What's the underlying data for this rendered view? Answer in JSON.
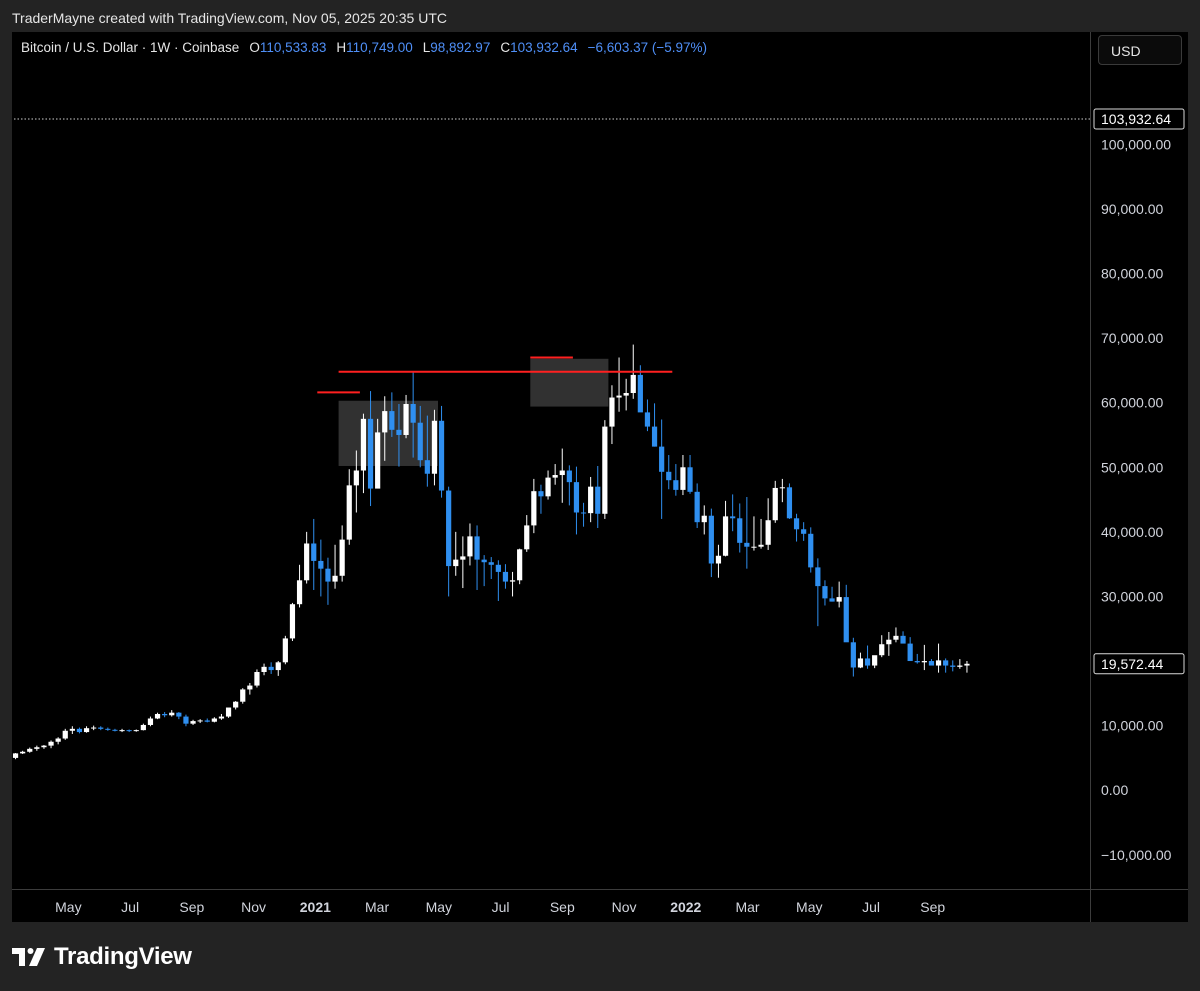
{
  "caption": "TraderMayne created with TradingView.com, Nov 05, 2025 20:35 UTC",
  "legend": {
    "symbol": "Bitcoin / U.S. Dollar · 1W · Coinbase",
    "o_label": "O",
    "o_value": "110,533.83",
    "h_label": "H",
    "h_value": "110,749.00",
    "l_label": "L",
    "l_value": "98,892.97",
    "c_label": "C",
    "c_value": "103,932.64",
    "change": "−6,603.37 (−5.97%)"
  },
  "currency_button": "USD",
  "brand": "TradingView",
  "colors": {
    "background": "#000000",
    "up": "#ffffff",
    "down": "#2f8ff0",
    "level_line": "#ff2020",
    "zone": "#3a3a3a",
    "axis_text": "#d1d4dc"
  },
  "chart_data": {
    "type": "candlestick",
    "timeframe": "1W",
    "y_axis_ticks": [
      100000,
      90000,
      80000,
      70000,
      60000,
      50000,
      40000,
      30000,
      20000,
      10000,
      0,
      -10000
    ],
    "y_tick_labels": [
      "100,000.00",
      "90,000.00",
      "80,000.00",
      "70,000.00",
      "60,000.00",
      "50,000.00",
      "40,000.00",
      "30,000.00",
      "20,000.00",
      "10,000.00",
      "0.00",
      "−10,000.00"
    ],
    "ylim": [
      -15300,
      117400
    ],
    "x_tick_labels": [
      "May",
      "Jul",
      "Sep",
      "Nov",
      "2021",
      "Mar",
      "May",
      "Jul",
      "Sep",
      "Nov",
      "2022",
      "Mar",
      "May",
      "Jul",
      "Sep"
    ],
    "bold_x_ticks": [
      "2021",
      "2022"
    ],
    "price_tags": [
      {
        "value": 103932.64,
        "label": "103,932.64",
        "style": "dotted-line"
      },
      {
        "value": 19572.44,
        "label": "19,572.44",
        "style": "last-bar"
      }
    ],
    "horizontal_levels": [
      {
        "value": 61600,
        "from_bar": 43,
        "to_bar": 49
      },
      {
        "value": 64800,
        "from_bar": 46,
        "to_bar": 93
      },
      {
        "value": 67000,
        "from_bar": 73,
        "to_bar": 79
      }
    ],
    "zones": [
      {
        "from_bar": 46,
        "to_bar": 60,
        "low": 50200,
        "high": 60300
      },
      {
        "from_bar": 73,
        "to_bar": 84,
        "low": 59400,
        "high": 66800
      }
    ],
    "candles": [
      [
        5000,
        5750,
        4800,
        5700
      ],
      [
        5700,
        6100,
        5600,
        5950
      ],
      [
        5950,
        6600,
        5800,
        6400
      ],
      [
        6400,
        6900,
        6100,
        6650
      ],
      [
        6650,
        7000,
        6400,
        6900
      ],
      [
        6900,
        7700,
        6500,
        7500
      ],
      [
        7500,
        8200,
        7100,
        8000
      ],
      [
        8000,
        9500,
        7800,
        9200
      ],
      [
        9200,
        9900,
        8700,
        9500
      ],
      [
        9500,
        9700,
        8800,
        9000
      ],
      [
        9000,
        9900,
        8900,
        9600
      ],
      [
        9600,
        10000,
        9300,
        9700
      ],
      [
        9700,
        9900,
        9300,
        9500
      ],
      [
        9500,
        9700,
        9200,
        9350
      ],
      [
        9350,
        9500,
        9100,
        9250
      ],
      [
        9250,
        9500,
        9000,
        9300
      ],
      [
        9300,
        9400,
        9000,
        9150
      ],
      [
        9150,
        9400,
        9050,
        9300
      ],
      [
        9300,
        10300,
        9250,
        10100
      ],
      [
        10100,
        11400,
        9900,
        11100
      ],
      [
        11100,
        12000,
        11000,
        11800
      ],
      [
        11800,
        12100,
        11300,
        11600
      ],
      [
        11600,
        12400,
        11400,
        12000
      ],
      [
        12000,
        12100,
        11000,
        11400
      ],
      [
        11400,
        11700,
        9900,
        10300
      ],
      [
        10300,
        10900,
        10100,
        10700
      ],
      [
        10700,
        11000,
        10400,
        10800
      ],
      [
        10800,
        11100,
        10500,
        10600
      ],
      [
        10600,
        11300,
        10500,
        11100
      ],
      [
        11100,
        11800,
        10900,
        11400
      ],
      [
        11400,
        12300,
        11200,
        12800
      ],
      [
        12800,
        13800,
        12500,
        13700
      ],
      [
        13700,
        15800,
        13400,
        15600
      ],
      [
        15600,
        16600,
        14800,
        16200
      ],
      [
        16200,
        18700,
        15900,
        18300
      ],
      [
        18300,
        19600,
        17800,
        19100
      ],
      [
        19100,
        19800,
        18000,
        18600
      ],
      [
        18600,
        20000,
        17700,
        19800
      ],
      [
        19800,
        23900,
        19500,
        23500
      ],
      [
        23500,
        29000,
        23100,
        28800
      ],
      [
        28800,
        34900,
        28300,
        32500
      ],
      [
        32500,
        40000,
        32000,
        38200
      ],
      [
        38200,
        42000,
        31000,
        35500
      ],
      [
        35500,
        38800,
        30000,
        34300
      ],
      [
        34300,
        36000,
        28700,
        32300
      ],
      [
        32300,
        38000,
        31200,
        33200
      ],
      [
        33200,
        41000,
        32300,
        38800
      ],
      [
        38800,
        49700,
        38000,
        47200
      ],
      [
        47200,
        52600,
        43000,
        49500
      ],
      [
        49500,
        58300,
        46000,
        57500
      ],
      [
        57500,
        61800,
        44000,
        46700
      ],
      [
        46700,
        57500,
        47000,
        55400
      ],
      [
        55400,
        61000,
        51000,
        58700
      ],
      [
        58700,
        61600,
        54700,
        55800
      ],
      [
        55800,
        59800,
        50100,
        55000
      ],
      [
        55000,
        61200,
        54500,
        59800
      ],
      [
        59800,
        64800,
        51500,
        56900
      ],
      [
        56900,
        59500,
        50000,
        51100
      ],
      [
        51100,
        58000,
        47000,
        49000
      ],
      [
        49000,
        58900,
        47200,
        57200
      ],
      [
        57200,
        59500,
        45300,
        46400
      ],
      [
        46400,
        47000,
        30000,
        34700
      ],
      [
        34700,
        40000,
        33200,
        35700
      ],
      [
        35700,
        39300,
        31300,
        36200
      ],
      [
        36200,
        41300,
        34800,
        39300
      ],
      [
        39300,
        41000,
        31000,
        35700
      ],
      [
        35700,
        36400,
        31600,
        35300
      ],
      [
        35300,
        36100,
        32700,
        34900
      ],
      [
        34900,
        35600,
        29300,
        33800
      ],
      [
        33800,
        35000,
        31200,
        32300
      ],
      [
        32300,
        33800,
        30000,
        32500
      ],
      [
        32500,
        37400,
        31900,
        37300
      ],
      [
        37300,
        42600,
        36900,
        41000
      ],
      [
        41000,
        48200,
        39800,
        46300
      ],
      [
        46300,
        47300,
        42800,
        45500
      ],
      [
        45500,
        49500,
        45000,
        48400
      ],
      [
        48400,
        50500,
        47300,
        48800
      ],
      [
        48800,
        52900,
        44500,
        49500
      ],
      [
        49500,
        50300,
        44100,
        47700
      ],
      [
        47700,
        50100,
        39600,
        43000
      ],
      [
        43000,
        44500,
        40800,
        42900
      ],
      [
        42900,
        48500,
        41500,
        47000
      ],
      [
        47000,
        50200,
        40600,
        42800
      ],
      [
        42800,
        57300,
        42000,
        56300
      ],
      [
        56300,
        62700,
        53600,
        60800
      ],
      [
        60800,
        67000,
        58600,
        61100
      ],
      [
        61100,
        63700,
        58800,
        61500
      ],
      [
        61500,
        69000,
        60600,
        64300
      ],
      [
        64300,
        65800,
        59300,
        58500
      ],
      [
        58500,
        60500,
        55600,
        56300
      ],
      [
        56300,
        59900,
        53200,
        53200
      ],
      [
        53200,
        57400,
        42000,
        49300
      ],
      [
        49300,
        51900,
        46600,
        48000
      ],
      [
        48000,
        50500,
        45600,
        46500
      ],
      [
        46500,
        51900,
        45700,
        50000
      ],
      [
        50000,
        51900,
        45900,
        46200
      ],
      [
        46200,
        47500,
        40600,
        41500
      ],
      [
        41500,
        44100,
        39600,
        42500
      ],
      [
        42500,
        43600,
        33000,
        35100
      ],
      [
        35100,
        38000,
        32900,
        36300
      ],
      [
        36300,
        44800,
        36200,
        42400
      ],
      [
        42400,
        45800,
        40100,
        42100
      ],
      [
        42100,
        44400,
        36800,
        38300
      ],
      [
        38300,
        45400,
        34300,
        37700
      ],
      [
        37700,
        42400,
        37100,
        37700
      ],
      [
        37700,
        42000,
        37400,
        38000
      ],
      [
        38000,
        45200,
        37200,
        41800
      ],
      [
        41800,
        47900,
        41400,
        46800
      ],
      [
        46800,
        48200,
        44600,
        46900
      ],
      [
        46900,
        47500,
        42000,
        42100
      ],
      [
        42100,
        42800,
        38500,
        40400
      ],
      [
        40400,
        41500,
        38600,
        39700
      ],
      [
        39700,
        40700,
        33700,
        34500
      ],
      [
        34500,
        35900,
        25400,
        31600
      ],
      [
        31600,
        32500,
        28600,
        29700
      ],
      [
        29700,
        31500,
        29200,
        29200
      ],
      [
        29200,
        32300,
        28300,
        29900
      ],
      [
        29900,
        31800,
        23300,
        22900
      ],
      [
        22900,
        23600,
        17600,
        19000
      ],
      [
        19000,
        21300,
        18900,
        20400
      ],
      [
        20400,
        22400,
        18800,
        19300
      ],
      [
        19300,
        20700,
        18900,
        20900
      ],
      [
        20900,
        24000,
        20600,
        22600
      ],
      [
        22600,
        24500,
        20800,
        23300
      ],
      [
        23300,
        25200,
        22900,
        23900
      ],
      [
        23900,
        24600,
        23400,
        22700
      ],
      [
        22700,
        23700,
        20500,
        20000
      ],
      [
        20000,
        21100,
        19600,
        19800
      ],
      [
        19800,
        22500,
        18600,
        20000
      ],
      [
        20000,
        20300,
        19400,
        19300
      ],
      [
        19300,
        22700,
        18200,
        20100
      ],
      [
        20100,
        20400,
        18200,
        19300
      ],
      [
        19300,
        20100,
        18400,
        19100
      ],
      [
        19100,
        20300,
        18800,
        19300
      ],
      [
        19300,
        20000,
        18200,
        19572.44
      ]
    ]
  }
}
